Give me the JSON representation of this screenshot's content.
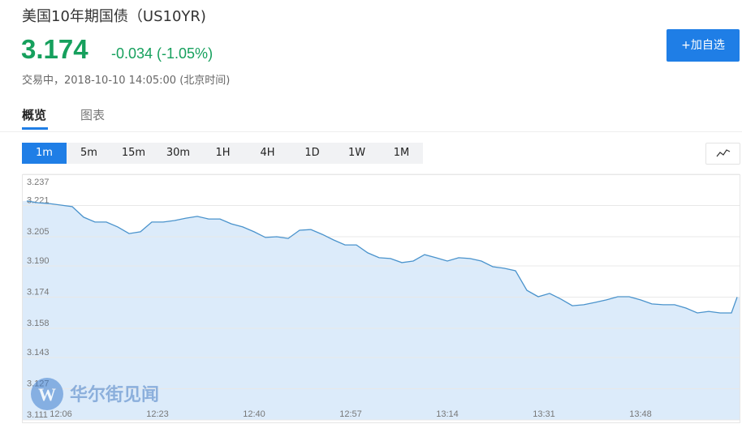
{
  "header": {
    "title": "美国10年期国债（US10YR)",
    "price": "3.174",
    "change": "-0.034 (-1.05%)",
    "status": "交易中，2018-10-10 14:05:00 (北京时间)",
    "button": "+加自选"
  },
  "tabs": [
    "概览",
    "图表"
  ],
  "intervals": [
    "1m",
    "5m",
    "15m",
    "30m",
    "1H",
    "4H",
    "1D",
    "1W",
    "1M"
  ],
  "selected_interval": "1m",
  "watermark": "华尔街见闻",
  "chart_data": {
    "type": "area",
    "color": "#4a93cc",
    "fill": "#dcebfa",
    "x": [
      "12:00",
      "12:02",
      "12:04",
      "12:06",
      "12:08",
      "12:10",
      "12:12",
      "12:14",
      "12:16",
      "12:18",
      "12:20",
      "12:22",
      "12:24",
      "12:26",
      "12:28",
      "12:30",
      "12:32",
      "12:34",
      "12:36",
      "12:38",
      "12:40",
      "12:42",
      "12:44",
      "12:46",
      "12:48",
      "12:50",
      "12:52",
      "12:54",
      "12:56",
      "12:58",
      "13:00",
      "13:02",
      "13:04",
      "13:06",
      "13:08",
      "13:10",
      "13:12",
      "13:14",
      "13:16",
      "13:18",
      "13:20",
      "13:22",
      "13:24",
      "13:26",
      "13:28",
      "13:30",
      "13:32",
      "13:34",
      "13:36",
      "13:38",
      "13:40",
      "13:42",
      "13:44",
      "13:46",
      "13:48",
      "13:50",
      "13:52",
      "13:54",
      "13:56",
      "13:58",
      "14:00",
      "14:02",
      "14:04",
      "14:05"
    ],
    "values": [
      3.2233,
      3.2224,
      3.222,
      3.2212,
      3.2204,
      3.215,
      3.2125,
      3.2125,
      3.21,
      3.2066,
      3.2075,
      3.2125,
      3.2125,
      3.2133,
      3.2145,
      3.2154,
      3.2141,
      3.2141,
      3.2116,
      3.21,
      3.2075,
      3.2046,
      3.205,
      3.2041,
      3.2083,
      3.2087,
      3.2062,
      3.2033,
      3.2008,
      3.2008,
      3.1967,
      3.1942,
      3.1938,
      3.1917,
      3.1925,
      3.1958,
      3.1942,
      3.1925,
      3.1942,
      3.1938,
      3.1925,
      3.1896,
      3.1888,
      3.1875,
      3.1775,
      3.1742,
      3.1759,
      3.173,
      3.1696,
      3.1701,
      3.1713,
      3.1726,
      3.1742,
      3.1742,
      3.1726,
      3.1705,
      3.1701,
      3.1701,
      3.1684,
      3.1659,
      3.1667,
      3.1659,
      3.1659,
      3.174
    ],
    "ylim": [
      3.111,
      3.237
    ],
    "yticks": [
      3.237,
      3.221,
      3.205,
      {
        "value": 3.19,
        "label": "3.190"
      },
      3.174,
      3.158,
      3.143,
      3.127,
      3.111
    ],
    "xticks": [
      "12:06",
      "12:23",
      "12:40",
      "12:57",
      "13:14",
      "13:31",
      "13:48"
    ],
    "grid": true
  }
}
